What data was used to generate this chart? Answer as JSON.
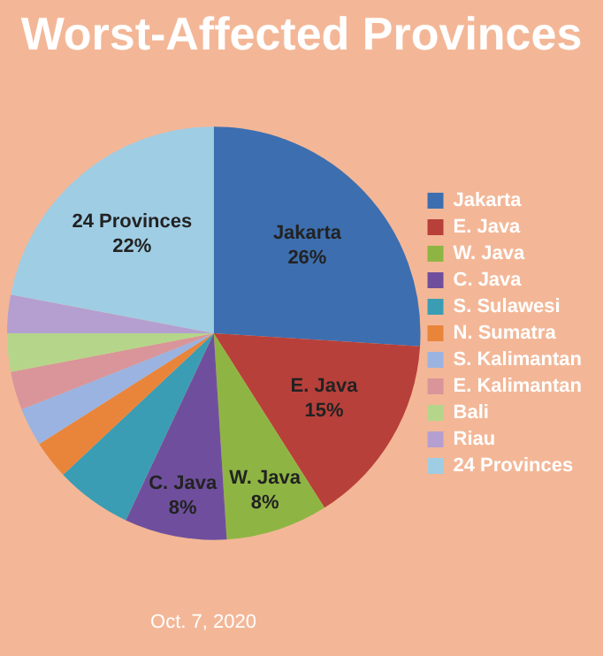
{
  "chart_data": {
    "type": "pie",
    "title": "Worst-Affected Provinces",
    "categories": [
      "Jakarta",
      "E. Java",
      "W. Java",
      "C. Java",
      "S. Sulawesi",
      "N. Sumatra",
      "S. Kalimantan",
      "E. Kalimantan",
      "Bali",
      "Riau",
      "24 Provinces"
    ],
    "values": [
      26,
      15,
      8,
      8,
      6,
      3,
      3,
      3,
      3,
      3,
      22
    ],
    "colors": [
      "#3d6fb0",
      "#b8403a",
      "#8eb543",
      "#6f4f9d",
      "#3a9db3",
      "#e9853a",
      "#9bb3e0",
      "#d9959a",
      "#b5d68a",
      "#b49fd0",
      "#9fcde4"
    ],
    "value_labels": [
      "26%",
      "15%",
      "8%",
      "8%",
      null,
      null,
      null,
      null,
      null,
      null,
      "22%"
    ],
    "legend": "right",
    "annotations": [
      "Oct. 7, 2020"
    ]
  }
}
